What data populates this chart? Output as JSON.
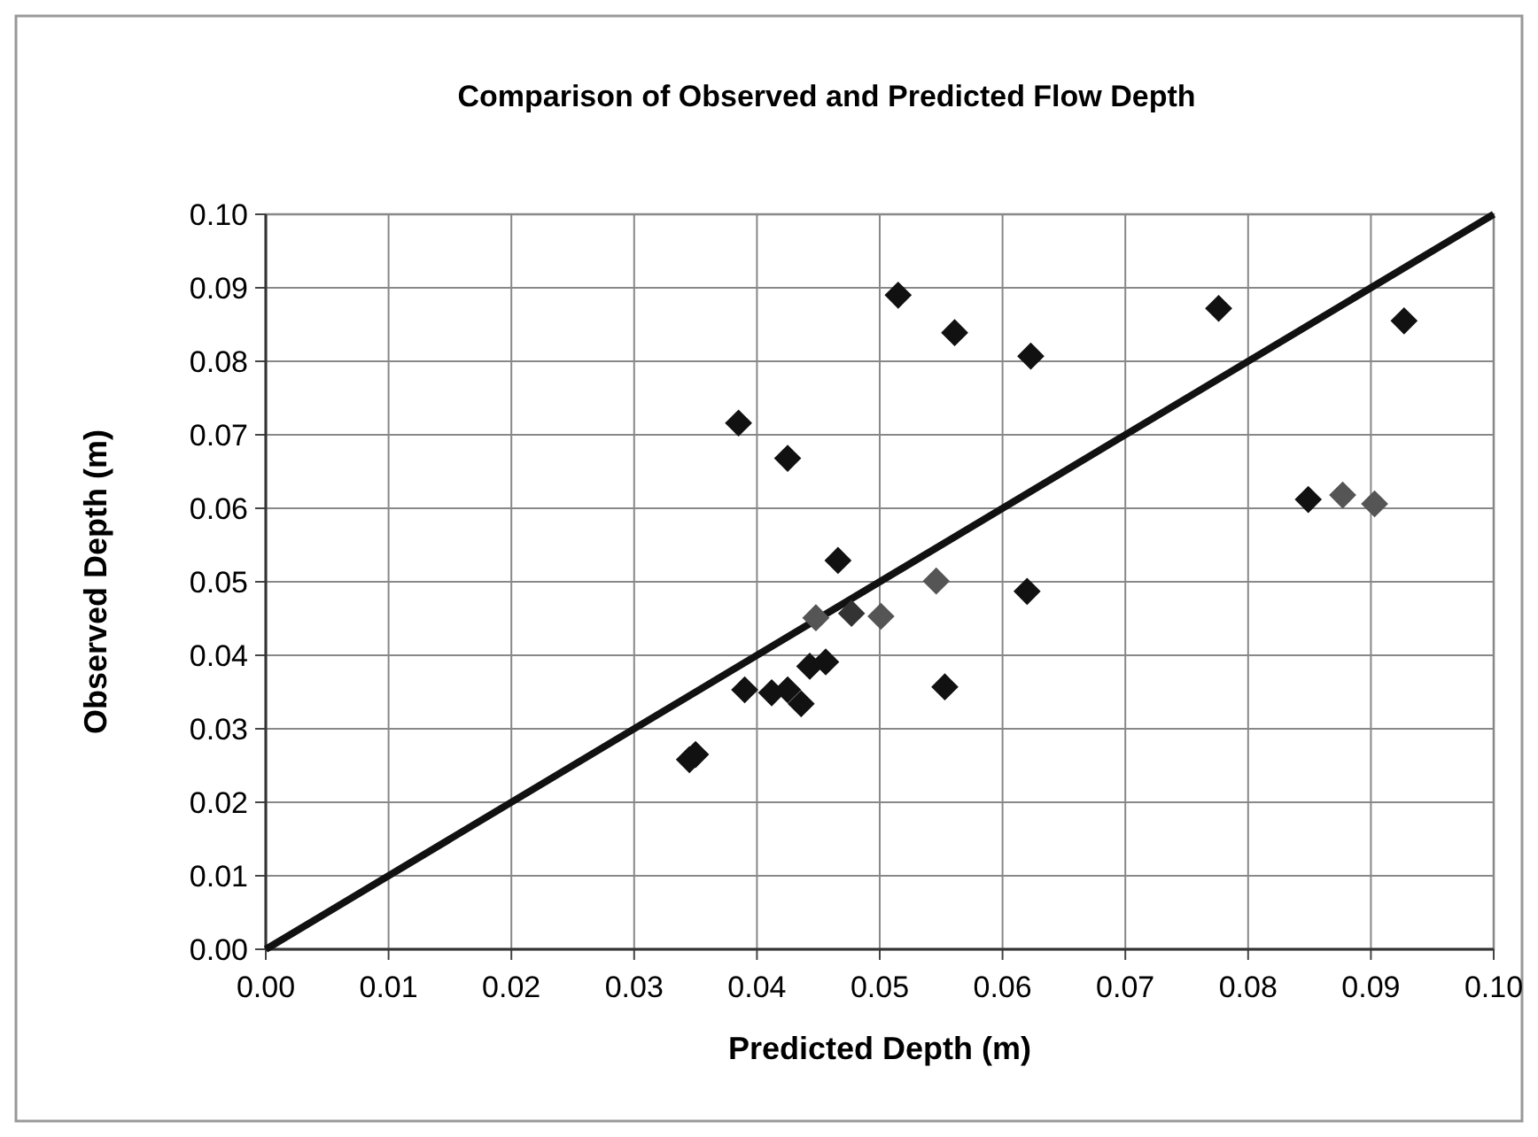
{
  "chart_data": {
    "type": "scatter",
    "title": "Comparison of Observed and Predicted Flow Depth",
    "xlabel": "Predicted Depth (m)",
    "ylabel": "Observed Depth (m)",
    "xlim": [
      0,
      0.1
    ],
    "ylim": [
      0,
      0.1
    ],
    "xticks": [
      {
        "value": 0,
        "label": "0.00"
      },
      {
        "value": 0.01,
        "label": "0.01"
      },
      {
        "value": 0.02,
        "label": "0.02"
      },
      {
        "value": 0.03,
        "label": "0.03"
      },
      {
        "value": 0.04,
        "label": "0.04"
      },
      {
        "value": 0.05,
        "label": "0.05"
      },
      {
        "value": 0.06,
        "label": "0.06"
      },
      {
        "value": 0.07,
        "label": "0.07"
      },
      {
        "value": 0.08,
        "label": "0.08"
      },
      {
        "value": 0.09,
        "label": "0.09"
      },
      {
        "value": 0.1,
        "label": "0.10"
      }
    ],
    "yticks": [
      {
        "value": 0,
        "label": "0.00"
      },
      {
        "value": 0.01,
        "label": "0.01"
      },
      {
        "value": 0.02,
        "label": "0.02"
      },
      {
        "value": 0.03,
        "label": "0.03"
      },
      {
        "value": 0.04,
        "label": "0.04"
      },
      {
        "value": 0.05,
        "label": "0.05"
      },
      {
        "value": 0.06,
        "label": "0.06"
      },
      {
        "value": 0.07,
        "label": "0.07"
      },
      {
        "value": 0.08,
        "label": "0.08"
      },
      {
        "value": 0.09,
        "label": "0.09"
      },
      {
        "value": 0.1,
        "label": "0.10"
      }
    ],
    "grid": true,
    "marker": "diamond",
    "series": [
      {
        "x": [
          0.0345,
          0.035,
          0.039,
          0.0412,
          0.0425,
          0.0436,
          0.0443,
          0.0456,
          0.0385,
          0.0425,
          0.0466,
          0.0448,
          0.0477,
          0.0501,
          0.0546,
          0.062,
          0.0553,
          0.0515,
          0.0561,
          0.0623,
          0.0776,
          0.0927,
          0.0849,
          0.0877,
          0.0903
        ],
        "values": [
          0.0258,
          0.0265,
          0.0353,
          0.0349,
          0.0353,
          0.0334,
          0.0385,
          0.0391,
          0.0716,
          0.0668,
          0.0529,
          0.0451,
          0.0457,
          0.0453,
          0.0501,
          0.0487,
          0.0357,
          0.089,
          0.0839,
          0.0807,
          0.0872,
          0.0855,
          0.0612,
          0.0618,
          0.0606
        ],
        "colors": [
          "#111111",
          "#111111",
          "#111111",
          "#111111",
          "#111111",
          "#111111",
          "#111111",
          "#111111",
          "#111111",
          "#111111",
          "#111111",
          "#555555",
          "#333333",
          "#555555",
          "#555555",
          "#111111",
          "#111111",
          "#111111",
          "#111111",
          "#111111",
          "#111111",
          "#111111",
          "#111111",
          "#555555",
          "#555555"
        ]
      },
      {
        "type": "line",
        "color": "#111111",
        "x": [
          0,
          0.1
        ],
        "values": [
          0,
          0.1
        ],
        "marker": "none"
      }
    ]
  }
}
